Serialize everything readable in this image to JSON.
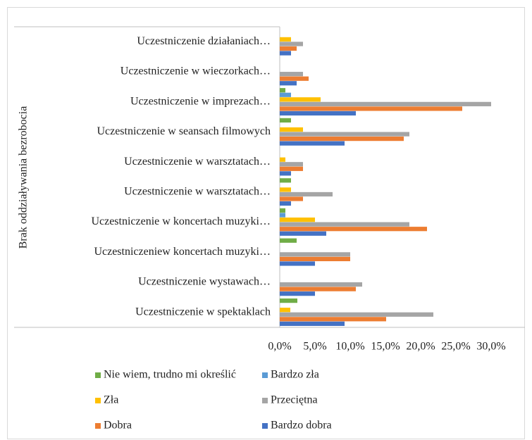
{
  "chart_data": {
    "type": "hbar",
    "y_axis_label": "Brak oddziaływania bezrobocia",
    "categories": [
      "Uczestniczenie w spektaklach",
      "Uczestniczenie wystawach…",
      "Uczestniczeniew koncertach muzyki…",
      "Uczestniczenie w koncertach muzyki…",
      "Uczestniczenie w warsztatach…",
      "Uczestniczenie w warsztatach…",
      "Uczestniczenie w seansach filmowych",
      "Uczestniczenie w imprezach…",
      "Uczestniczenie w wieczorkach…",
      "Uczestniczenie działaniach…"
    ],
    "series": [
      {
        "name": "Nie wiem, trudno mi określić",
        "color": "#70ad47",
        "values": [
          2.5,
          0,
          2.4,
          0.8,
          1.6,
          0,
          1.6,
          0.8,
          0,
          0
        ]
      },
      {
        "name": "Bardzo zła",
        "color": "#5b9bd5",
        "values": [
          0,
          0,
          0,
          0.8,
          0,
          0,
          0,
          1.6,
          0,
          0
        ]
      },
      {
        "name": "Zła",
        "color": "#ffc000",
        "values": [
          1.5,
          0,
          0,
          5.0,
          1.6,
          0.8,
          3.3,
          5.8,
          0,
          1.6
        ]
      },
      {
        "name": "Przeciętna",
        "color": "#a5a5a5",
        "values": [
          21.8,
          11.7,
          10.0,
          18.4,
          7.5,
          3.3,
          18.4,
          30.0,
          3.3,
          3.3
        ]
      },
      {
        "name": "Dobra",
        "color": "#ed7d31",
        "values": [
          15.1,
          10.8,
          10.0,
          20.9,
          3.3,
          3.3,
          17.6,
          25.9,
          4.1,
          2.4
        ]
      },
      {
        "name": "Bardzo dobra",
        "color": "#4472c4",
        "values": [
          9.2,
          5.0,
          5.0,
          6.6,
          1.6,
          1.6,
          9.2,
          10.8,
          2.4,
          1.6
        ]
      }
    ],
    "xlim": [
      0,
      30
    ],
    "xticks": [
      {
        "value": 0,
        "label": "0,0%"
      },
      {
        "value": 5,
        "label": "5,0%"
      },
      {
        "value": 10,
        "label": "10,0%"
      },
      {
        "value": 15,
        "label": "15,0%"
      },
      {
        "value": 20,
        "label": "20,0%"
      },
      {
        "value": 25,
        "label": "25,0%"
      },
      {
        "value": 30,
        "label": "30,0%"
      }
    ]
  }
}
